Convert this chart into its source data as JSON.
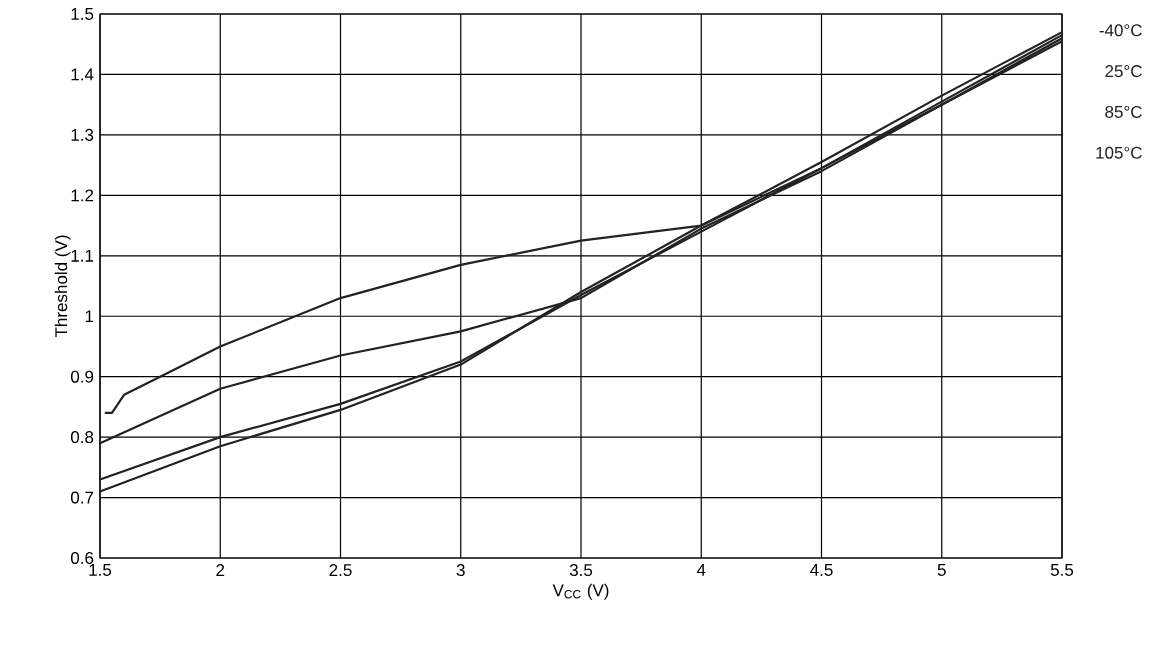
{
  "chart_data": {
    "type": "line",
    "xlabel": "V$_{CC}$ (V)",
    "ylabel": "Threshold (V)",
    "xlim": [
      1.5,
      5.5
    ],
    "ylim": [
      0.6,
      1.5
    ],
    "xticks": [
      1.5,
      2,
      2.5,
      3,
      3.5,
      4,
      4.5,
      5,
      5.5
    ],
    "yticks": [
      0.6,
      0.7,
      0.8,
      0.9,
      1,
      1.1,
      1.2,
      1.3,
      1.4,
      1.5
    ],
    "grid": true,
    "legend": false,
    "marker": "none",
    "line_style": "solid",
    "series": [
      {
        "name": "-40°C",
        "color": "#222222",
        "x": [
          1.5,
          2,
          2.5,
          3,
          3.5,
          4,
          4.5,
          5,
          5.5
        ],
        "values": [
          0.71,
          0.785,
          0.845,
          0.92,
          1.04,
          1.15,
          1.255,
          1.365,
          1.47
        ]
      },
      {
        "name": "25°C",
        "color": "#222222",
        "x": [
          1.5,
          2,
          2.5,
          3,
          3.5,
          4,
          4.5,
          5,
          5.5
        ],
        "values": [
          0.73,
          0.8,
          0.855,
          0.925,
          1.035,
          1.14,
          1.245,
          1.355,
          1.465
        ]
      },
      {
        "name": "85°C",
        "color": "#222222",
        "x": [
          1.5,
          2,
          2.5,
          3,
          3.5,
          4,
          4.5,
          5,
          5.5
        ],
        "values": [
          0.79,
          0.88,
          0.935,
          0.975,
          1.03,
          1.145,
          1.24,
          1.35,
          1.46
        ]
      },
      {
        "name": "105°C",
        "color": "#222222",
        "x": [
          1.52,
          1.55,
          1.6,
          1.75,
          2,
          2.5,
          3,
          3.5,
          4,
          4.5,
          5,
          5.5
        ],
        "values": [
          0.84,
          0.84,
          0.87,
          0.9,
          0.95,
          1.03,
          1.085,
          1.125,
          1.15,
          1.245,
          1.35,
          1.455
        ]
      }
    ]
  }
}
